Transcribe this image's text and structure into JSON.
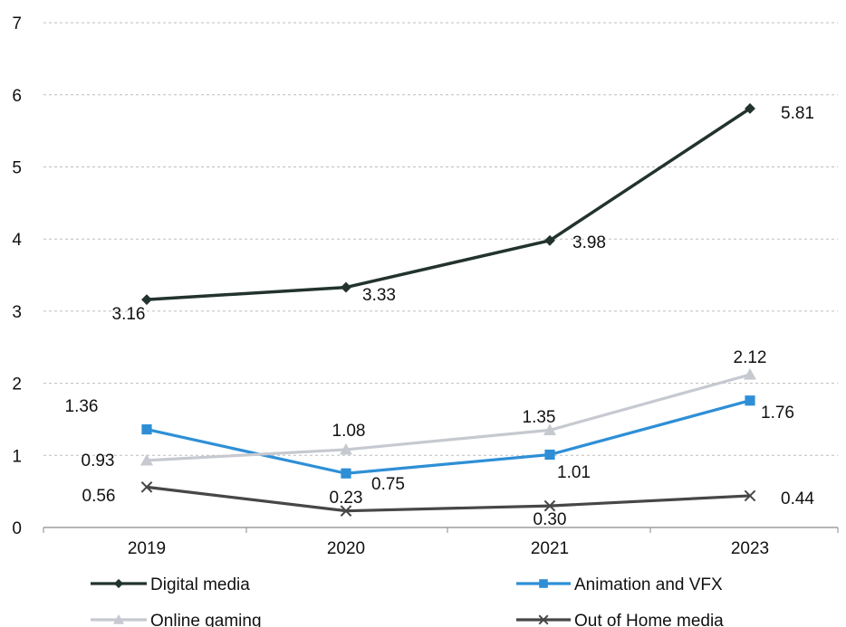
{
  "chart_data": {
    "type": "line",
    "categories": [
      "2019",
      "2020",
      "2021",
      "2023"
    ],
    "ylim": [
      0,
      7
    ],
    "yticks": [
      0,
      1,
      2,
      3,
      4,
      5,
      6,
      7
    ],
    "grid": true,
    "legend_position": "bottom",
    "series": [
      {
        "name": "Digital media",
        "values": [
          3.16,
          3.33,
          3.98,
          5.81
        ],
        "labels": [
          "3.16",
          "3.33",
          "3.98",
          "5.81"
        ],
        "color": "#22332f",
        "marker": "diamond"
      },
      {
        "name": "Animation and VFX",
        "values": [
          1.36,
          0.75,
          1.01,
          1.76
        ],
        "labels": [
          "1.36",
          "0.75",
          "1.01",
          "1.76"
        ],
        "color": "#2e8fd6",
        "marker": "square"
      },
      {
        "name": "Online gaming",
        "values": [
          0.93,
          1.08,
          1.35,
          2.12
        ],
        "labels": [
          "0.93",
          "1.08",
          "1.35",
          "2.12"
        ],
        "color": "#c6c9d0",
        "marker": "triangle"
      },
      {
        "name": "Out of Home media",
        "values": [
          0.56,
          0.23,
          0.3,
          0.44
        ],
        "labels": [
          "0.56",
          "0.23",
          "0.30",
          "0.44"
        ],
        "color": "#474747",
        "marker": "x"
      }
    ]
  }
}
